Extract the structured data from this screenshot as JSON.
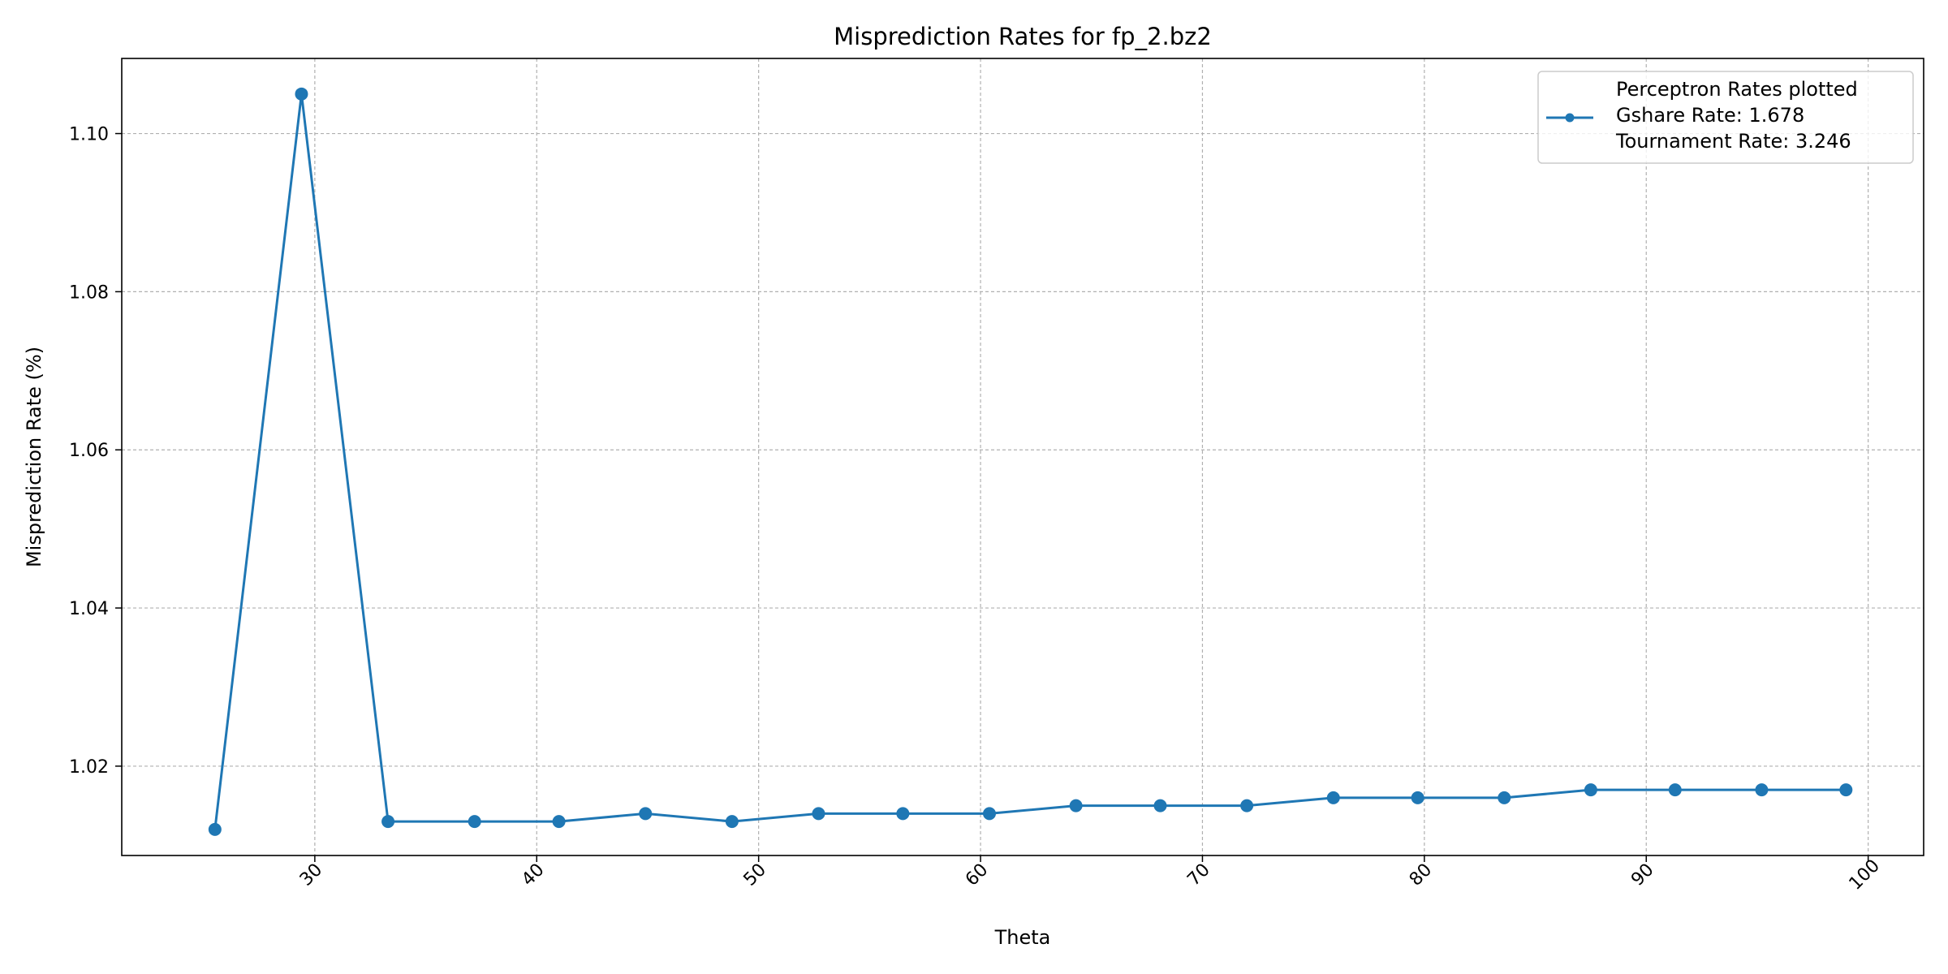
{
  "chart_data": {
    "type": "line",
    "title": "Misprediction Rates for fp_2.bz2",
    "xlabel": "Theta",
    "ylabel": "Misprediction Rate (%)",
    "xlim": [
      21.3,
      102.5
    ],
    "ylim": [
      1.0087,
      1.1095
    ],
    "xticks": [
      30,
      40,
      50,
      60,
      70,
      80,
      90,
      100
    ],
    "yticks": [
      1.02,
      1.04,
      1.06,
      1.08,
      1.1
    ],
    "ytick_labels": [
      "1.02",
      "1.04",
      "1.06",
      "1.08",
      "1.10"
    ],
    "grid": true,
    "legend_position": "top-right",
    "legend_entries": [
      "Perceptron Rates plotted",
      "Gshare Rate: 1.678",
      "Tournament Rate: 3.246"
    ],
    "series": [
      {
        "color": "#1f77b4",
        "x": [
          25.5,
          29.4,
          33.3,
          37.2,
          41.0,
          44.9,
          48.8,
          52.7,
          56.5,
          60.4,
          64.3,
          68.1,
          72.0,
          75.9,
          79.7,
          83.6,
          87.5,
          91.3,
          95.2,
          99.0
        ],
        "values": [
          1.012,
          1.105,
          1.013,
          1.013,
          1.013,
          1.014,
          1.013,
          1.014,
          1.014,
          1.014,
          1.015,
          1.015,
          1.015,
          1.016,
          1.016,
          1.016,
          1.017,
          1.017,
          1.017,
          1.017
        ]
      }
    ]
  }
}
